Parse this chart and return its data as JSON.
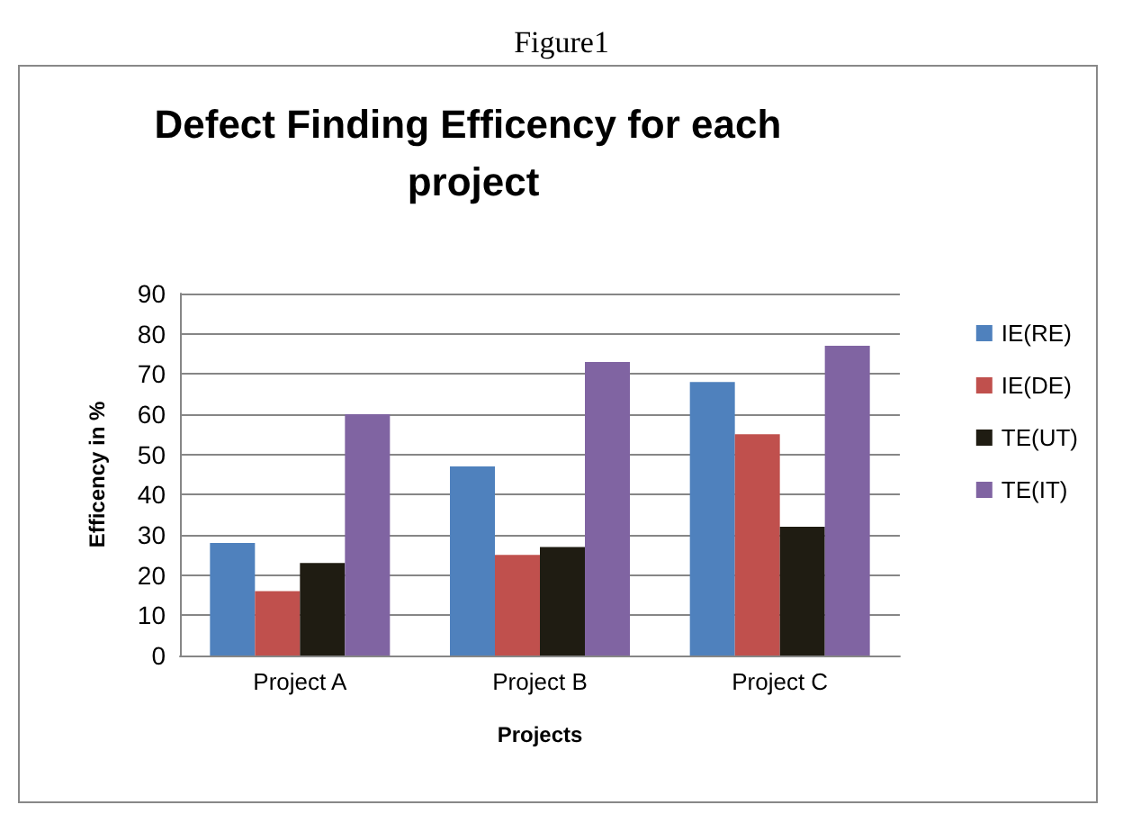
{
  "chart_data": {
    "type": "bar",
    "title": "Defect Finding Efficency for each project",
    "annotations": [
      "Figure1"
    ],
    "xlabel": "Projects",
    "ylabel": "Efficency in %",
    "categories": [
      "Project A",
      "Project B",
      "Project C"
    ],
    "series": [
      {
        "name": "IE(RE)",
        "color": "#4f81bd",
        "values": [
          28,
          47,
          68
        ]
      },
      {
        "name": "IE(DE)",
        "color": "#c0504d",
        "values": [
          16,
          25,
          55
        ]
      },
      {
        "name": "TE(UT)",
        "color": "#1f1c12",
        "values": [
          23,
          27,
          32
        ]
      },
      {
        "name": "TE(IT)",
        "color": "#8064a2",
        "values": [
          60,
          73,
          77
        ]
      }
    ],
    "ylim": [
      0,
      90
    ],
    "yticks": [
      0,
      10,
      20,
      30,
      40,
      50,
      60,
      70,
      80,
      90
    ],
    "grid": "y",
    "legend": "right"
  }
}
